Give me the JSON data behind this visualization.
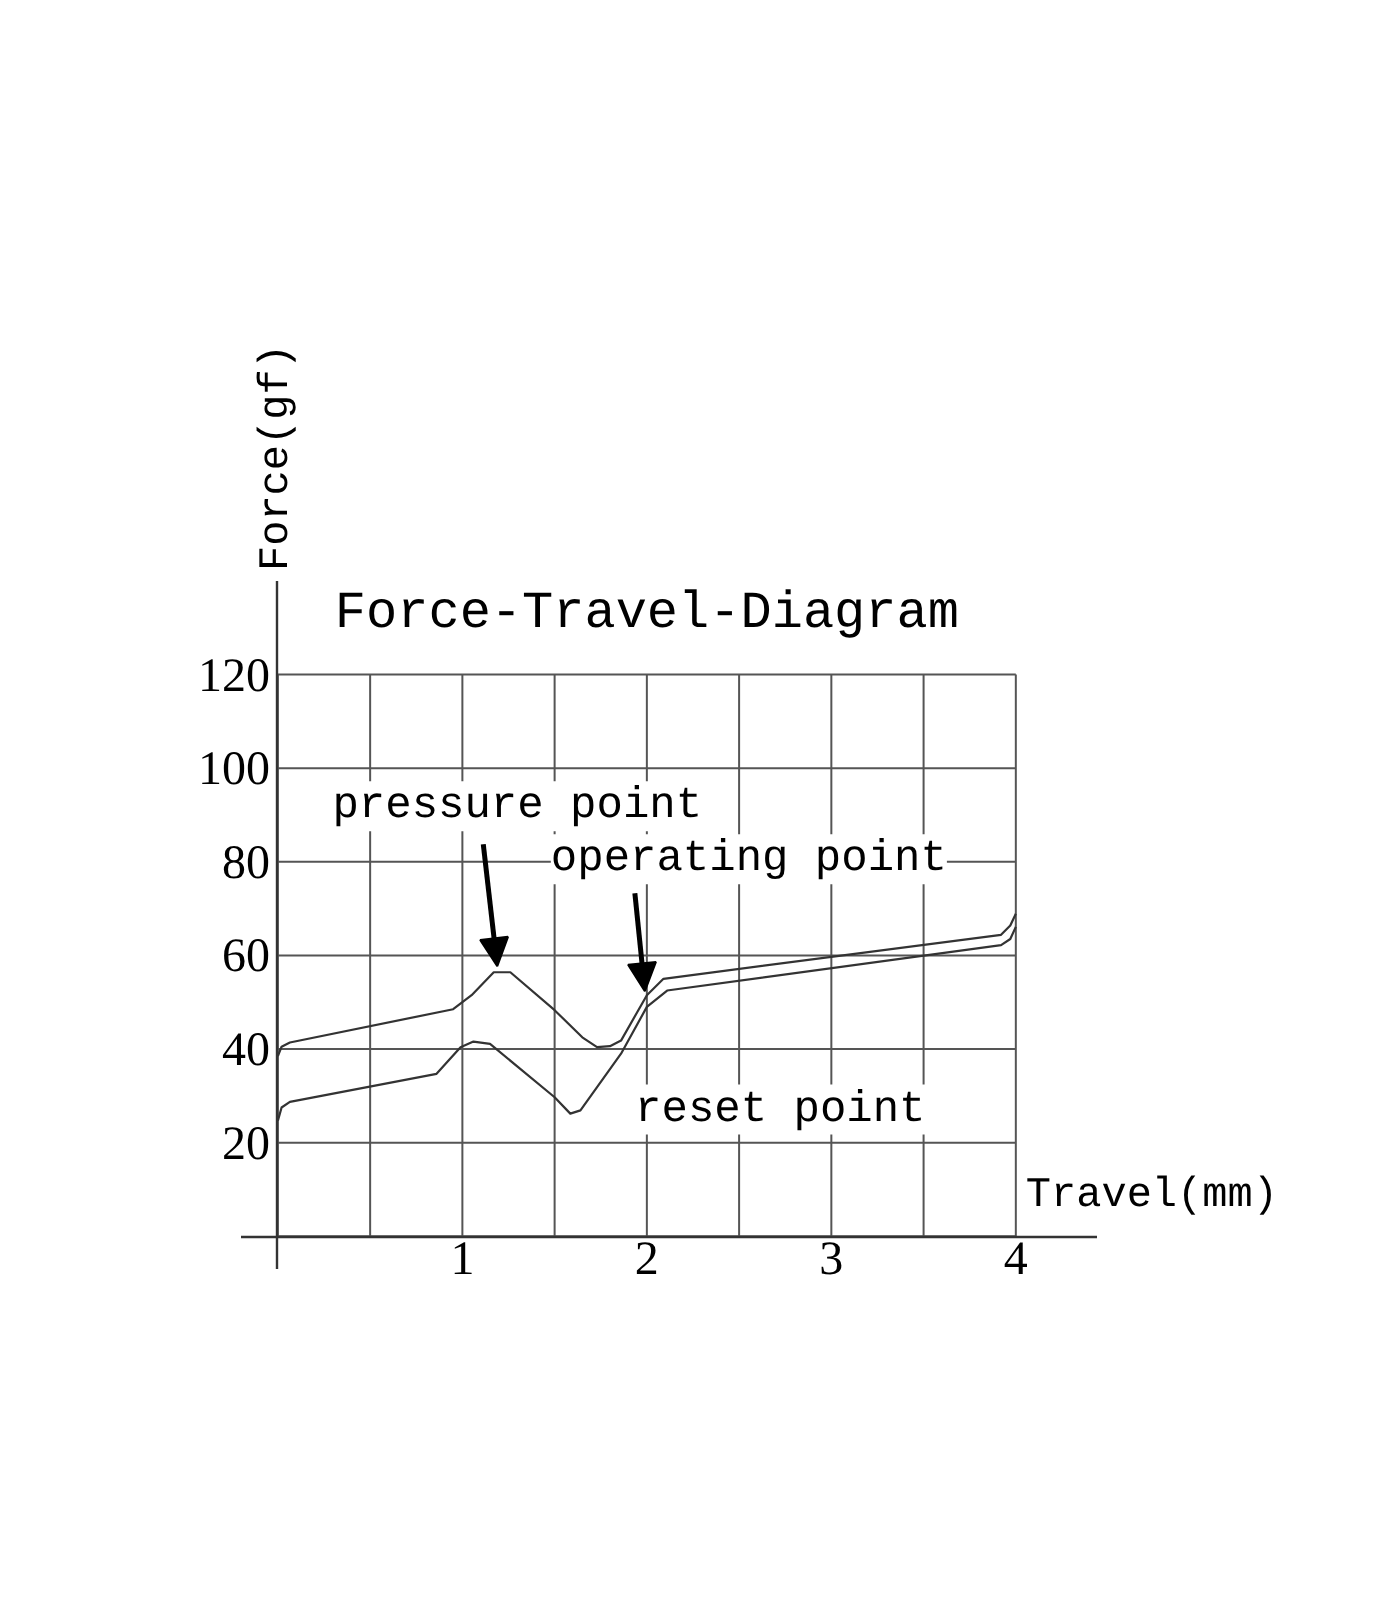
{
  "chart_data": {
    "type": "line",
    "title": "Force-Travel-Diagram",
    "xlabel": "Travel(mm)",
    "ylabel": "Force(gf)",
    "series": [
      {
        "color": "#333333",
        "x": [
          0,
          0.02,
          0.065,
          0.95,
          1.05,
          1.17,
          1.26,
          1.5,
          1.65,
          1.73,
          1.8,
          1.86,
          2.0,
          2.09,
          3.92,
          3.97,
          4.0
        ],
        "values": [
          38.5,
          40.5,
          41.4,
          48.5,
          51.5,
          56.4,
          56.4,
          48.3,
          42.5,
          40.4,
          40.6,
          41.8,
          51.5,
          55,
          64.4,
          66.4,
          68.9
        ]
      },
      {
        "color": "#333333",
        "x": [
          0,
          0.02,
          0.065,
          0.86,
          0.99,
          1.06,
          1.15,
          1.5,
          1.585,
          1.64,
          1.86,
          2.0,
          2.11,
          3.92,
          3.97,
          4.0
        ],
        "values": [
          24.7,
          27.5,
          28.7,
          34.7,
          40.4,
          41.6,
          41.1,
          29.7,
          26.2,
          26.9,
          39.0,
          49,
          52.5,
          62.2,
          63.5,
          66.1
        ]
      }
    ],
    "xlim": [
      -0.2,
      4.44
    ],
    "ylim": [
      -7,
      140
    ],
    "xticks": [
      {
        "value": 0,
        "label": null
      },
      {
        "value": 0.5,
        "label": null
      },
      1,
      {
        "value": 1.5,
        "label": null
      },
      2,
      {
        "value": 2.5,
        "label": null
      },
      3,
      {
        "value": 3.5,
        "label": null
      },
      4
    ],
    "yticks": [
      {
        "value": 0,
        "label": null
      },
      20,
      40,
      60,
      80,
      100,
      120
    ],
    "grid": true,
    "annotations": [
      {
        "text": "pressure point",
        "x": 1.2,
        "y": 56.4
      },
      {
        "text": "operating point",
        "x": 2.0,
        "y": 51.5
      },
      {
        "text": "reset point",
        "x": 1.585,
        "y": 26.2
      }
    ]
  }
}
